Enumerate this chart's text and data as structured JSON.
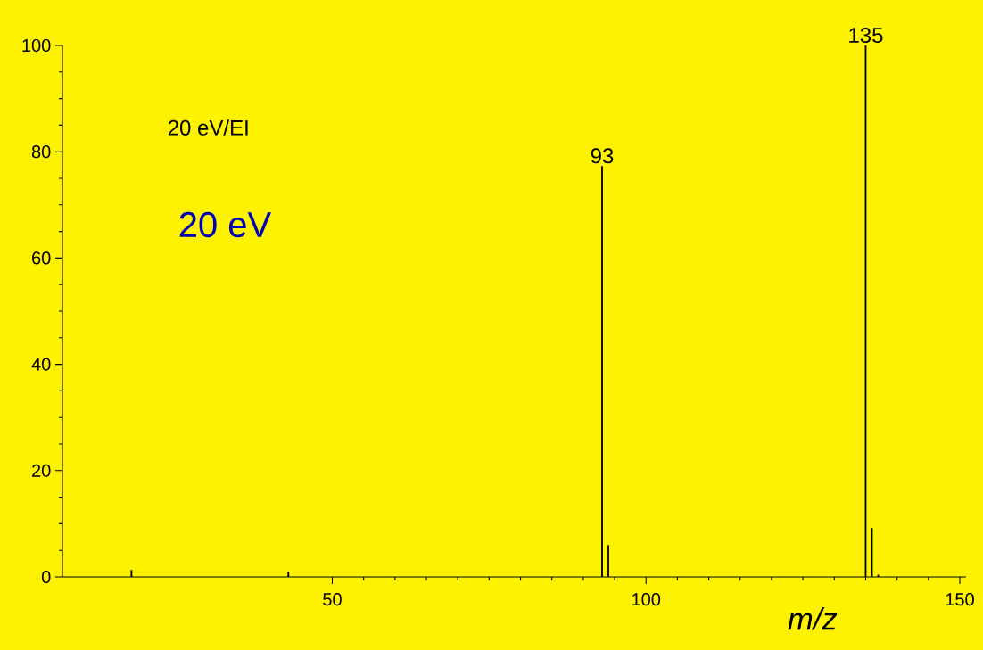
{
  "chart_data": {
    "type": "bar",
    "xlabel": "*m/z*",
    "x": [
      18,
      43,
      93,
      94,
      135,
      136,
      137
    ],
    "values": [
      1.3,
      1.0,
      77.3,
      6.0,
      100,
      9.2,
      0.4
    ],
    "color": "#000000",
    "xlim": [
      7,
      151
    ],
    "xticks": [
      50,
      100,
      150
    ],
    "ylim": [
      0,
      100
    ],
    "yticks": [
      0,
      20,
      40,
      60,
      80,
      100
    ],
    "grid": false,
    "annotations": [
      {
        "text": "93",
        "x": 93,
        "y": 77.3
      },
      {
        "text": "135",
        "x": 135,
        "y": 100
      },
      "20 eV/EI",
      "20 eV"
    ]
  }
}
